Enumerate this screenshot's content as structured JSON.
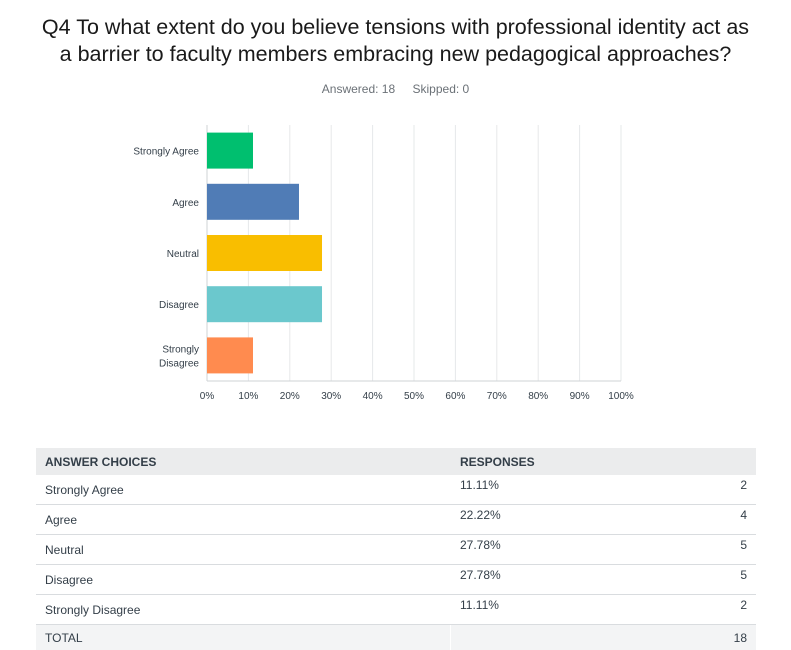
{
  "question": {
    "title_line1": "Q4 To what extent do you believe tensions with professional identity act as",
    "title_line2": "a barrier to faculty members embracing new pedagogical approaches?"
  },
  "stats": {
    "answered": "Answered: 18",
    "skipped": "Skipped: 0"
  },
  "chart_data": {
    "type": "bar",
    "orientation": "horizontal",
    "categories": [
      "Strongly Agree",
      "Agree",
      "Neutral",
      "Disagree",
      "Strongly Disagree"
    ],
    "values": [
      11.11,
      22.22,
      27.78,
      27.78,
      11.11
    ],
    "colors": [
      "#00bf6f",
      "#507cb6",
      "#f9be00",
      "#6bc8cd",
      "#ff8b4f"
    ],
    "xlim": [
      0,
      100
    ],
    "ticks": [
      0,
      10,
      20,
      30,
      40,
      50,
      60,
      70,
      80,
      90,
      100
    ],
    "tick_labels": [
      "0%",
      "10%",
      "20%",
      "30%",
      "40%",
      "50%",
      "60%",
      "70%",
      "80%",
      "90%",
      "100%"
    ],
    "grid": true,
    "xlabel": "",
    "ylabel": ""
  },
  "table": {
    "headers": {
      "choices": "ANSWER CHOICES",
      "responses": "RESPONSES"
    },
    "rows": [
      {
        "choice": "Strongly Agree",
        "percent": "11.11%",
        "count": "2"
      },
      {
        "choice": "Agree",
        "percent": "22.22%",
        "count": "4"
      },
      {
        "choice": "Neutral",
        "percent": "27.78%",
        "count": "5"
      },
      {
        "choice": "Disagree",
        "percent": "27.78%",
        "count": "5"
      },
      {
        "choice": "Strongly Disagree",
        "percent": "11.11%",
        "count": "2"
      }
    ],
    "total_label": "TOTAL",
    "total_count": "18"
  }
}
